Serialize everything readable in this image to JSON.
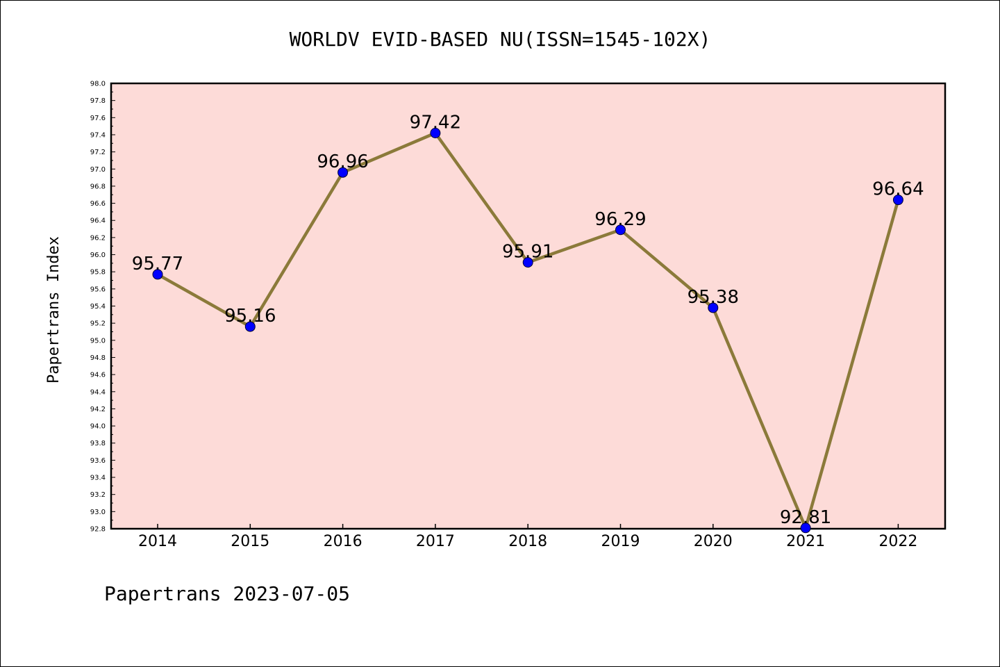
{
  "chart_data": {
    "type": "line",
    "title": "WORLDV EVID-BASED NU(ISSN=1545-102X)",
    "xlabel": "",
    "ylabel": "Papertrans Index",
    "categories": [
      "2014",
      "2015",
      "2016",
      "2017",
      "2018",
      "2019",
      "2020",
      "2021",
      "2022"
    ],
    "series": [
      {
        "values": [
          95.77,
          95.16,
          96.96,
          97.42,
          95.91,
          96.29,
          95.38,
          92.81,
          96.64
        ],
        "labels": [
          "95.77",
          "95.16",
          "96.96",
          "97.42",
          "95.91",
          "96.29",
          "95.38",
          "92.81",
          "96.64"
        ]
      }
    ],
    "ylim": [
      92.8,
      98.0
    ],
    "yticks": [
      "92.8",
      "93.0",
      "93.2",
      "93.4",
      "93.6",
      "93.8",
      "94.0",
      "94.2",
      "94.4",
      "94.6",
      "94.8",
      "95.0",
      "95.2",
      "95.4",
      "95.6",
      "95.8",
      "96.0",
      "96.2",
      "96.4",
      "96.6",
      "96.8",
      "97.0",
      "97.2",
      "97.4",
      "97.6",
      "97.8",
      "98.0"
    ],
    "grid": false,
    "colors": {
      "plot_background": "#fddbd8",
      "line": "#8b7a3a",
      "marker": "#0000ff"
    }
  },
  "footer": "Papertrans 2023-07-05"
}
